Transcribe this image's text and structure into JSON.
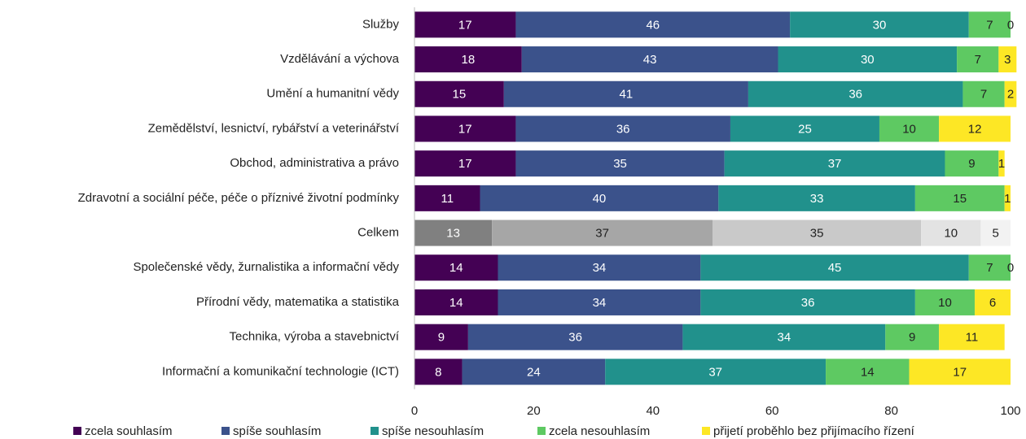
{
  "chart_data": {
    "type": "stacked_barh",
    "categories": [
      "Služby",
      "Vzdělávání a výchova",
      "Umění a humanitní vědy",
      "Zemědělství, lesnictví, rybářství a veterinářství",
      "Obchod, administrativa a právo",
      "Zdravotní a sociální péče, péče o příznivé životní podmínky",
      "Celkem",
      "Společenské vědy, žurnalistika a informační vědy",
      "Přírodní vědy, matematika a statistika",
      "Technika, výroba a stavebnictví",
      "Informační a komunikační technologie (ICT)"
    ],
    "series": [
      {
        "name": "zcela souhlasím",
        "color": "#440154",
        "label_color": "#ffffff",
        "values": [
          17,
          18,
          15,
          17,
          17,
          11,
          13,
          14,
          14,
          9,
          8
        ]
      },
      {
        "name": "spíše souhlasím",
        "color": "#3b528b",
        "label_color": "#ffffff",
        "values": [
          46,
          43,
          41,
          36,
          35,
          40,
          37,
          34,
          34,
          36,
          24
        ]
      },
      {
        "name": "spíše nesouhlasím",
        "color": "#21918c",
        "label_color": "#ffffff",
        "values": [
          30,
          30,
          36,
          25,
          37,
          33,
          35,
          45,
          36,
          34,
          37
        ]
      },
      {
        "name": "zcela nesouhlasím",
        "color": "#5ec962",
        "label_color": "#222222",
        "values": [
          7,
          7,
          7,
          10,
          9,
          15,
          10,
          7,
          10,
          9,
          14
        ]
      },
      {
        "name": "přijetí proběhlo bez přijímacího řízení",
        "color": "#fde725",
        "label_color": "#222222",
        "values": [
          0,
          3,
          2,
          12,
          1,
          1,
          5,
          0,
          6,
          11,
          17
        ]
      }
    ],
    "gray_category": "Celkem",
    "gray_colors": [
      "#808080",
      "#a6a6a6",
      "#c9c9c9",
      "#e3e3e3",
      "#f2f2f2"
    ],
    "gray_label_colors": [
      "#ffffff",
      "#222222",
      "#222222",
      "#222222",
      "#222222"
    ],
    "xlim": [
      0,
      100
    ],
    "xticks": [
      0,
      20,
      40,
      60,
      80,
      100
    ],
    "grid": false
  }
}
